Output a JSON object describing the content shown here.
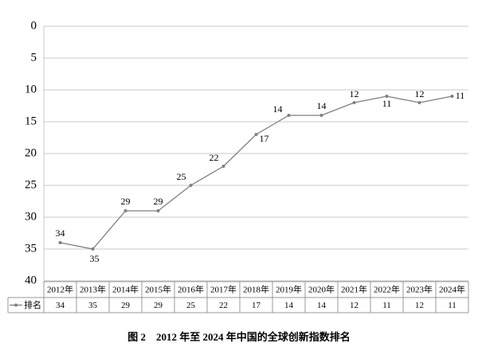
{
  "chart_data": {
    "type": "line",
    "title": "图 2　2012 年至 2024 年中国的全球创新指数排名",
    "categories": [
      "2012年",
      "2013年",
      "2014年",
      "2015年",
      "2016年",
      "2017年",
      "2018年",
      "2019年",
      "2020年",
      "2021年",
      "2022年",
      "2023年",
      "2024年"
    ],
    "series": [
      {
        "name": "排名",
        "color": "#7f7f7f",
        "values": [
          34,
          35,
          29,
          29,
          25,
          22,
          17,
          14,
          14,
          12,
          11,
          12,
          11
        ]
      }
    ],
    "ylim": [
      0,
      40
    ],
    "yticks": [
      0,
      5,
      10,
      15,
      20,
      25,
      30,
      35,
      40
    ],
    "y_reversed": true,
    "grid": true,
    "data_table": true
  }
}
